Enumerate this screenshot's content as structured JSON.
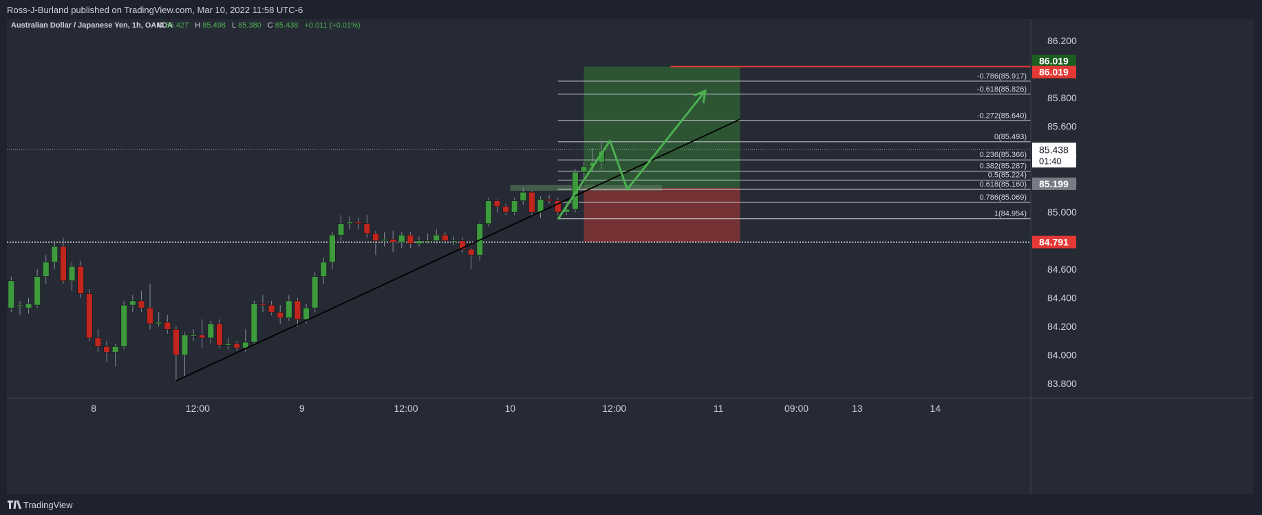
{
  "header": {
    "publisher_line": "Ross-J-Burland published on TradingView.com, Mar 10, 2022 11:58 UTC-6"
  },
  "footer": {
    "brand": "TradingView",
    "logo_icon": "tradingview-logo-icon"
  },
  "legend": {
    "symbol": "Australian Dollar / Japanese Yen, 1h, OANDA",
    "o_label": "O",
    "o_value": "85.427",
    "h_label": "H",
    "h_value": "85.498",
    "l_label": "L",
    "l_value": "85.380",
    "c_label": "C",
    "c_value": "85.438",
    "change": "+0.011 (+0.01%)"
  },
  "colors": {
    "background": "#262a35",
    "up_candle": "#3d9a3d",
    "down_candle": "#c0261e",
    "target_zone": "#2f5a34",
    "stop_zone": "#7d3335",
    "projection_arrow": "#4caf50",
    "trendline": "#000000",
    "price_tag_green": "#1b5e20",
    "price_tag_red": "#e53935",
    "price_tag_grey": "#787b86"
  },
  "chart_data": {
    "type": "candlestick",
    "title": "Australian Dollar / Japanese Yen, 1h, OANDA",
    "ylim": [
      83.8,
      86.3
    ],
    "y_ticks": [
      "86.200",
      "85.800",
      "85.600",
      "85.400",
      "85.200",
      "85.000",
      "84.600",
      "84.400",
      "84.200",
      "84.000",
      "83.800"
    ],
    "y_tick_values": [
      86.2,
      85.8,
      85.6,
      85.4,
      85.2,
      85.0,
      84.6,
      84.4,
      84.2,
      84.0,
      83.8
    ],
    "x_range": [
      0,
      118
    ],
    "x_ticks": [
      {
        "label": "8",
        "x": 10
      },
      {
        "label": "12:00",
        "x": 22
      },
      {
        "label": "9",
        "x": 34
      },
      {
        "label": "12:00",
        "x": 46
      },
      {
        "label": "10",
        "x": 58
      },
      {
        "label": "12:00",
        "x": 70
      },
      {
        "label": "11",
        "x": 82
      },
      {
        "label": "09:00",
        "x": 91
      },
      {
        "label": "13",
        "x": 98
      },
      {
        "label": "14",
        "x": 107
      }
    ],
    "candles": [
      [
        84.33,
        84.52,
        84.3,
        84.55
      ],
      [
        84.34,
        84.35,
        84.28,
        84.38
      ],
      [
        84.33,
        84.36,
        84.29,
        84.4
      ],
      [
        84.35,
        84.55,
        84.33,
        84.6
      ],
      [
        84.55,
        84.65,
        84.5,
        84.7
      ],
      [
        84.65,
        84.76,
        84.6,
        84.8
      ],
      [
        84.76,
        84.52,
        84.5,
        84.82
      ],
      [
        84.52,
        84.62,
        84.45,
        84.65
      ],
      [
        84.62,
        84.43,
        84.4,
        84.66
      ],
      [
        84.43,
        84.12,
        84.1,
        84.46
      ],
      [
        84.12,
        84.06,
        84.02,
        84.18
      ],
      [
        84.06,
        84.02,
        83.95,
        84.1
      ],
      [
        84.02,
        84.06,
        83.92,
        84.08
      ],
      [
        84.06,
        84.35,
        84.04,
        84.38
      ],
      [
        84.35,
        84.38,
        84.3,
        84.42
      ],
      [
        84.38,
        84.33,
        84.3,
        84.45
      ],
      [
        84.33,
        84.22,
        84.18,
        84.5
      ],
      [
        84.22,
        84.23,
        84.2,
        84.3
      ],
      [
        84.23,
        84.18,
        84.15,
        84.28
      ],
      [
        84.18,
        84.0,
        83.82,
        84.2
      ],
      [
        84.0,
        84.14,
        83.85,
        84.16
      ],
      [
        84.14,
        84.14,
        84.1,
        84.18
      ],
      [
        84.14,
        84.12,
        84.05,
        84.25
      ],
      [
        84.12,
        84.22,
        84.08,
        84.24
      ],
      [
        84.22,
        84.07,
        84.05,
        84.25
      ],
      [
        84.07,
        84.08,
        84.04,
        84.12
      ],
      [
        84.08,
        84.05,
        84.03,
        84.1
      ],
      [
        84.05,
        84.09,
        84.02,
        84.18
      ],
      [
        84.09,
        84.36,
        84.07,
        84.38
      ],
      [
        84.36,
        84.35,
        84.3,
        84.42
      ],
      [
        84.35,
        84.3,
        84.28,
        84.38
      ],
      [
        84.3,
        84.26,
        84.22,
        84.35
      ],
      [
        84.26,
        84.38,
        84.24,
        84.42
      ],
      [
        84.38,
        84.25,
        84.2,
        84.4
      ],
      [
        84.25,
        84.33,
        84.22,
        84.36
      ],
      [
        84.33,
        84.55,
        84.3,
        84.58
      ],
      [
        84.55,
        84.65,
        84.5,
        84.68
      ],
      [
        84.65,
        84.84,
        84.6,
        84.86
      ],
      [
        84.84,
        84.92,
        84.8,
        84.98
      ],
      [
        84.92,
        84.93,
        84.88,
        84.97
      ],
      [
        84.93,
        84.92,
        84.88,
        84.96
      ],
      [
        84.92,
        84.85,
        84.82,
        84.98
      ],
      [
        84.85,
        84.8,
        84.7,
        84.87
      ],
      [
        84.8,
        84.81,
        84.76,
        84.86
      ],
      [
        84.81,
        84.79,
        84.72,
        84.87
      ],
      [
        84.79,
        84.84,
        84.75,
        84.86
      ],
      [
        84.84,
        84.78,
        84.75,
        84.86
      ],
      [
        84.78,
        84.8,
        84.76,
        84.83
      ],
      [
        84.8,
        84.8,
        84.78,
        84.85
      ],
      [
        84.8,
        84.84,
        84.78,
        84.88
      ],
      [
        84.84,
        84.8,
        84.78,
        84.86
      ],
      [
        84.8,
        84.8,
        84.77,
        84.83
      ],
      [
        84.8,
        84.74,
        84.72,
        84.82
      ],
      [
        84.74,
        84.7,
        84.6,
        84.75
      ],
      [
        84.7,
        84.92,
        84.66,
        84.93
      ],
      [
        84.92,
        85.08,
        84.9,
        85.1
      ],
      [
        85.08,
        85.04,
        85.0,
        85.09
      ],
      [
        85.04,
        85.0,
        84.98,
        85.06
      ],
      [
        85.0,
        85.08,
        84.98,
        85.1
      ],
      [
        85.08,
        85.14,
        85.05,
        85.17
      ],
      [
        85.14,
        85.0,
        84.98,
        85.15
      ],
      [
        85.0,
        85.09,
        84.96,
        85.11
      ],
      [
        85.09,
        85.08,
        85.06,
        85.12
      ],
      [
        85.08,
        85.0,
        84.98,
        85.1
      ],
      [
        85.0,
        85.02,
        84.98,
        85.06
      ],
      [
        85.02,
        85.28,
        85.0,
        85.3
      ],
      [
        85.28,
        85.32,
        85.22,
        85.35
      ],
      [
        85.32,
        85.35,
        85.28,
        85.45
      ],
      [
        85.35,
        85.43,
        85.3,
        85.5
      ]
    ],
    "candle_x_start": 0,
    "trendline": [
      [
        19.5,
        83.82
      ],
      [
        84.5,
        85.65
      ]
    ],
    "trade_box": {
      "x1": 66.5,
      "x2": 84.5,
      "entry": 85.17,
      "target": 86.019,
      "stop": 84.79
    },
    "red_hline": {
      "x1": 76.5,
      "x2": 118,
      "y": 86.019
    },
    "resistance_zone": {
      "x1": 58,
      "x2": 75.5,
      "y1": 85.15,
      "y2": 85.19
    },
    "last_price_hline": 85.438,
    "dotted_hline": 84.791,
    "fib_x1": 63.5,
    "fib_x2": 118,
    "fib_levels": [
      {
        "label": "-0.786(85.917)",
        "y": 85.917
      },
      {
        "label": "-0.618(85.826)",
        "y": 85.826
      },
      {
        "label": "-0.272(85.640)",
        "y": 85.64
      },
      {
        "label": "0(85.493)",
        "y": 85.493
      },
      {
        "label": "0.236(85.366)",
        "y": 85.366
      },
      {
        "label": "0.382(85.287)",
        "y": 85.287
      },
      {
        "label": "0.5(85.224)",
        "y": 85.224
      },
      {
        "label": "0.618(85.160)",
        "y": 85.16
      },
      {
        "label": "0.786(85.069)",
        "y": 85.069
      },
      {
        "label": "1(84.954)",
        "y": 84.954
      }
    ],
    "projection_path": [
      [
        63.5,
        84.95
      ],
      [
        69.5,
        85.5
      ],
      [
        71.5,
        85.16
      ],
      [
        80.5,
        85.85
      ]
    ],
    "price_tags": [
      {
        "value": "86.019",
        "y": 86.019,
        "color": "#1b5e20",
        "offset": -8
      },
      {
        "value": "86.019",
        "y": 86.019,
        "color": "#e53935",
        "offset": 8
      },
      {
        "value": "85.199",
        "y": 85.199,
        "color": "#787b86",
        "offset": 0
      },
      {
        "value": "84.791",
        "y": 84.791,
        "color": "#e53935",
        "offset": 0
      }
    ],
    "current_price": {
      "value": "85.438",
      "countdown": "01:40",
      "y": 85.438
    }
  }
}
